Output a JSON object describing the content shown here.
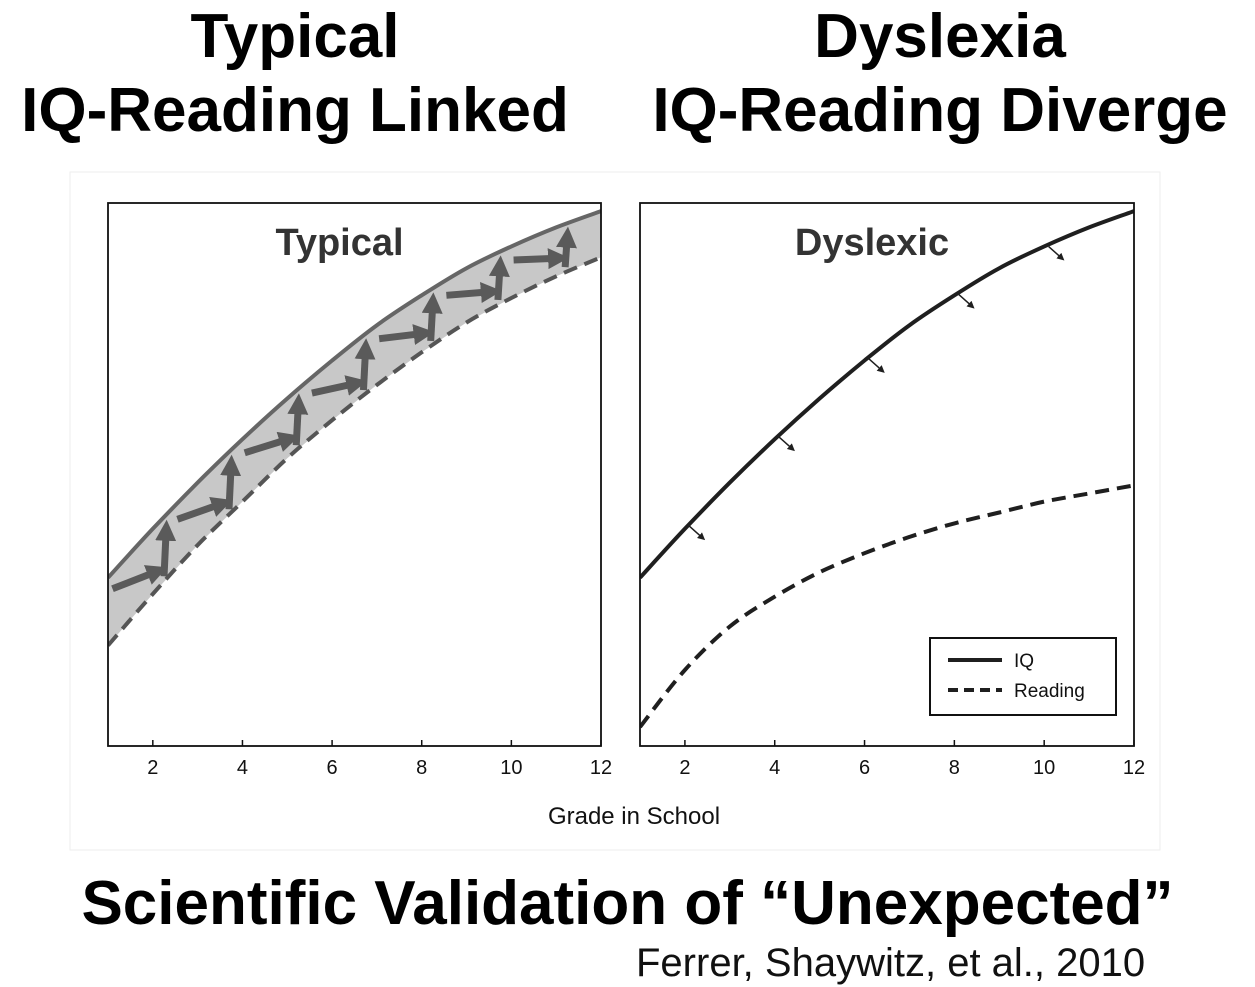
{
  "header": {
    "left": {
      "line1": "Typical",
      "line2": "IQ-Reading Linked"
    },
    "right": {
      "line1": "Dyslexia",
      "line2": "IQ-Reading Diverge"
    }
  },
  "footer": {
    "title": "Scientific Validation of “Unexpected”",
    "citation": "Ferrer, Shaywitz, et al., 2010"
  },
  "colors": {
    "band_fill": "#c8c8c8",
    "line": "#1f1f1f",
    "arrow": "#5a5a5a"
  },
  "chart_data": [
    {
      "type": "line",
      "title": "Typical",
      "xlabel": "Grade in School",
      "xlim": [
        1,
        12
      ],
      "ylim": [
        0,
        10
      ],
      "xticks": [
        2,
        4,
        6,
        8,
        10,
        12
      ],
      "grid": false,
      "shaded_band_between_series": true,
      "series": [
        {
          "name": "IQ",
          "style": "solid",
          "x": [
            1,
            2,
            3,
            4,
            5,
            6,
            7,
            8,
            9,
            10,
            11,
            12
          ],
          "y": [
            3.1,
            4.0,
            4.85,
            5.65,
            6.4,
            7.1,
            7.75,
            8.3,
            8.8,
            9.2,
            9.55,
            9.85
          ]
        },
        {
          "name": "Reading",
          "style": "dashed",
          "x": [
            1,
            2,
            3,
            4,
            5,
            6,
            7,
            8,
            9,
            10,
            11,
            12
          ],
          "y": [
            1.85,
            2.8,
            3.7,
            4.5,
            5.3,
            6.0,
            6.65,
            7.25,
            7.8,
            8.25,
            8.65,
            9.0
          ]
        }
      ]
    },
    {
      "type": "line",
      "title": "Dyslexic",
      "xlabel": "Grade in School",
      "xlim": [
        1,
        12
      ],
      "ylim": [
        0,
        10
      ],
      "xticks": [
        2,
        4,
        6,
        8,
        10,
        12
      ],
      "grid": false,
      "legend": "bottom-right",
      "series": [
        {
          "name": "IQ",
          "style": "solid",
          "x": [
            1,
            2,
            3,
            4,
            5,
            6,
            7,
            8,
            9,
            10,
            11,
            12
          ],
          "y": [
            3.1,
            4.0,
            4.85,
            5.65,
            6.4,
            7.1,
            7.75,
            8.3,
            8.8,
            9.2,
            9.55,
            9.85
          ]
        },
        {
          "name": "Reading",
          "style": "dashed",
          "x": [
            1,
            2,
            3,
            4,
            5,
            6,
            7,
            8,
            9,
            10,
            11,
            12
          ],
          "y": [
            0.35,
            1.4,
            2.2,
            2.75,
            3.2,
            3.55,
            3.85,
            4.1,
            4.3,
            4.5,
            4.65,
            4.8
          ]
        }
      ]
    }
  ]
}
